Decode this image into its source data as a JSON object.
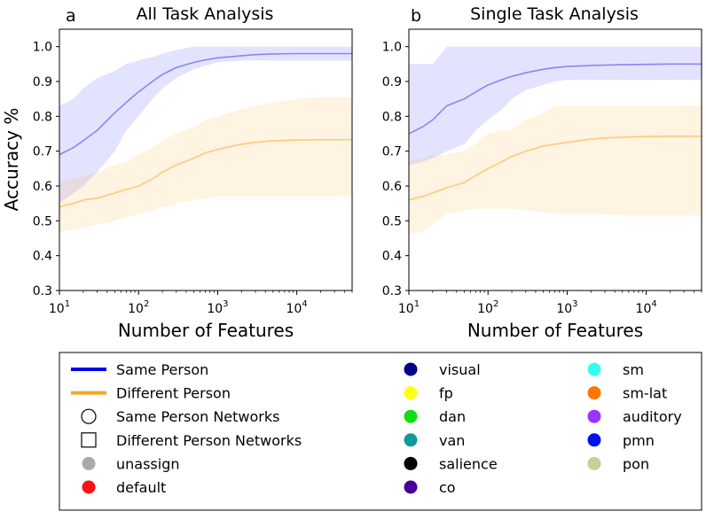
{
  "figure": {
    "ylabel": "Accuracy %",
    "xlabel": "Number of Features",
    "same_color": "#0000ee",
    "diff_color": "#f5a623",
    "same_fill": "#6666ff",
    "diff_fill": "#ffb347"
  },
  "chart_data": [
    {
      "type": "line",
      "panel_letter": "a",
      "title": "All Task Analysis",
      "xlabel": "Number of Features",
      "ylabel": "Accuracy %",
      "xscale": "log",
      "xlim": [
        10,
        50000
      ],
      "ylim": [
        0.3,
        1.05
      ],
      "xticks": [
        10,
        100,
        1000,
        10000
      ],
      "xtick_labels": [
        "10^1",
        "10^2",
        "10^3",
        "10^4"
      ],
      "yticks": [
        0.3,
        0.4,
        0.5,
        0.6,
        0.7,
        0.8,
        0.9,
        1.0
      ],
      "ytick_labels": [
        "0.3",
        "0.4",
        "0.5",
        "0.6",
        "0.7",
        "0.8",
        "0.9",
        "1.0"
      ],
      "grid": false,
      "x": [
        10,
        15,
        20,
        30,
        50,
        70,
        100,
        150,
        200,
        300,
        500,
        700,
        1000,
        2000,
        3000,
        5000,
        10000,
        20000,
        50000
      ],
      "series": [
        {
          "name": "Same Person",
          "values": [
            0.69,
            0.71,
            0.73,
            0.76,
            0.81,
            0.84,
            0.87,
            0.9,
            0.92,
            0.94,
            0.955,
            0.962,
            0.968,
            0.974,
            0.977,
            0.979,
            0.98,
            0.98,
            0.98
          ],
          "lower": [
            0.55,
            0.58,
            0.6,
            0.64,
            0.7,
            0.76,
            0.8,
            0.85,
            0.88,
            0.91,
            0.935,
            0.945,
            0.955,
            0.96,
            0.96,
            0.96,
            0.96,
            0.96,
            0.96
          ],
          "upper": [
            0.83,
            0.85,
            0.88,
            0.91,
            0.93,
            0.95,
            0.96,
            0.97,
            0.98,
            0.99,
            1.0,
            1.0,
            1.0,
            1.0,
            1.0,
            1.0,
            1.0,
            1.0,
            1.0
          ]
        },
        {
          "name": "Different Person",
          "values": [
            0.54,
            0.55,
            0.56,
            0.565,
            0.58,
            0.59,
            0.6,
            0.62,
            0.64,
            0.66,
            0.68,
            0.695,
            0.705,
            0.72,
            0.725,
            0.73,
            0.732,
            0.733,
            0.733
          ],
          "lower": [
            0.47,
            0.475,
            0.48,
            0.49,
            0.5,
            0.51,
            0.52,
            0.53,
            0.54,
            0.55,
            0.56,
            0.565,
            0.57,
            0.57,
            0.57,
            0.57,
            0.57,
            0.57,
            0.57
          ],
          "upper": [
            0.61,
            0.62,
            0.63,
            0.64,
            0.66,
            0.67,
            0.69,
            0.71,
            0.73,
            0.75,
            0.77,
            0.79,
            0.8,
            0.82,
            0.83,
            0.84,
            0.85,
            0.855,
            0.855
          ]
        }
      ]
    },
    {
      "type": "line",
      "panel_letter": "b",
      "title": "Single Task Analysis",
      "xlabel": "Number of Features",
      "ylabel": "",
      "xscale": "log",
      "xlim": [
        10,
        50000
      ],
      "ylim": [
        0.3,
        1.05
      ],
      "xticks": [
        10,
        100,
        1000,
        10000
      ],
      "xtick_labels": [
        "10^1",
        "10^2",
        "10^3",
        "10^4"
      ],
      "yticks": [
        0.3,
        0.4,
        0.5,
        0.6,
        0.7,
        0.8,
        0.9,
        1.0
      ],
      "ytick_labels": [
        "0.3",
        "0.4",
        "0.5",
        "0.6",
        "0.7",
        "0.8",
        "0.9",
        "1.0"
      ],
      "grid": false,
      "x": [
        10,
        15,
        20,
        30,
        50,
        70,
        100,
        150,
        200,
        300,
        500,
        700,
        1000,
        2000,
        3000,
        5000,
        10000,
        20000,
        50000
      ],
      "series": [
        {
          "name": "Same Person",
          "values": [
            0.75,
            0.77,
            0.79,
            0.83,
            0.85,
            0.87,
            0.89,
            0.905,
            0.915,
            0.925,
            0.935,
            0.94,
            0.943,
            0.946,
            0.947,
            0.948,
            0.949,
            0.95,
            0.95
          ],
          "lower": [
            0.66,
            0.67,
            0.68,
            0.7,
            0.72,
            0.76,
            0.79,
            0.82,
            0.85,
            0.875,
            0.89,
            0.9,
            0.905,
            0.905,
            0.905,
            0.905,
            0.905,
            0.905,
            0.905
          ],
          "upper": [
            0.95,
            0.95,
            0.95,
            1.0,
            1.0,
            1.0,
            1.0,
            1.0,
            1.0,
            1.0,
            1.0,
            1.0,
            1.0,
            1.0,
            1.0,
            1.0,
            1.0,
            1.0,
            1.0
          ]
        },
        {
          "name": "Different Person",
          "values": [
            0.56,
            0.57,
            0.58,
            0.595,
            0.61,
            0.63,
            0.65,
            0.67,
            0.685,
            0.7,
            0.715,
            0.72,
            0.725,
            0.735,
            0.738,
            0.74,
            0.742,
            0.743,
            0.743
          ],
          "lower": [
            0.46,
            0.47,
            0.49,
            0.52,
            0.53,
            0.535,
            0.535,
            0.535,
            0.535,
            0.53,
            0.525,
            0.52,
            0.52,
            0.52,
            0.52,
            0.515,
            0.515,
            0.515,
            0.515
          ],
          "upper": [
            0.67,
            0.68,
            0.69,
            0.69,
            0.7,
            0.72,
            0.75,
            0.76,
            0.76,
            0.79,
            0.81,
            0.83,
            0.83,
            0.83,
            0.83,
            0.83,
            0.83,
            0.83,
            0.83
          ]
        }
      ]
    }
  ],
  "legend": {
    "col1": [
      {
        "kind": "line",
        "color": "#0000ee",
        "label": "Same Person"
      },
      {
        "kind": "line",
        "color": "#f5a623",
        "label": "Different Person"
      },
      {
        "kind": "circle-open",
        "color": "#000000",
        "label": "Same Person Networks"
      },
      {
        "kind": "square-open",
        "color": "#000000",
        "label": "Different Person Networks"
      },
      {
        "kind": "dot",
        "color": "#aaaaaa",
        "label": "unassign"
      },
      {
        "kind": "dot",
        "color": "#ff1111",
        "label": "default"
      }
    ],
    "col2": [
      {
        "kind": "dot",
        "color": "#00008b",
        "label": "visual"
      },
      {
        "kind": "dot",
        "color": "#ffff11",
        "label": "fp"
      },
      {
        "kind": "dot",
        "color": "#11dd11",
        "label": "dan"
      },
      {
        "kind": "dot",
        "color": "#119999",
        "label": "van"
      },
      {
        "kind": "dot",
        "color": "#000000",
        "label": "salience"
      },
      {
        "kind": "dot",
        "color": "#440099",
        "label": "co"
      }
    ],
    "col3": [
      {
        "kind": "dot",
        "color": "#33ffee",
        "label": "sm"
      },
      {
        "kind": "dot",
        "color": "#ff7700",
        "label": "sm-lat"
      },
      {
        "kind": "dot",
        "color": "#9933ff",
        "label": "auditory"
      },
      {
        "kind": "dot",
        "color": "#0011ee",
        "label": "pmn"
      },
      {
        "kind": "dot",
        "color": "#cccc99",
        "label": "pon"
      }
    ]
  }
}
